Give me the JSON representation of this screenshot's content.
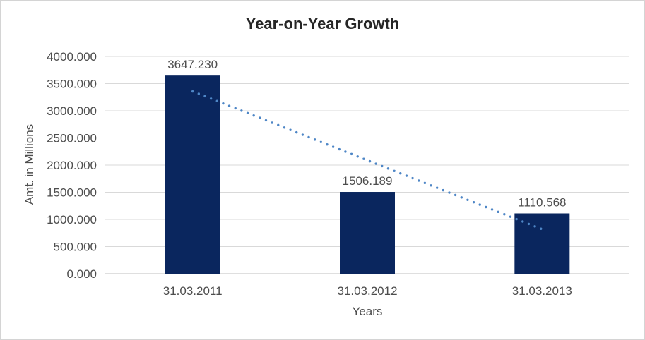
{
  "frame": {
    "background": "#ffffff",
    "border_color": "#d4d4d4"
  },
  "chart_data": {
    "type": "bar",
    "title": "Year-on-Year Growth",
    "xlabel": "Years",
    "ylabel": "Amt. in Millions",
    "categories": [
      "31.03.2011",
      "31.03.2012",
      "31.03.2013"
    ],
    "values": [
      3647.23,
      1506.189,
      1110.568
    ],
    "data_labels": [
      "3647.230",
      "1506.189",
      "1110.568"
    ],
    "ylim": [
      0,
      4000
    ],
    "ytick_step": 500,
    "ytick_decimals": 3,
    "ytick_labels": [
      "0.000",
      "500.000",
      "1000.000",
      "1500.000",
      "2000.000",
      "2500.000",
      "3000.000",
      "3500.000",
      "4000.000"
    ],
    "grid": true,
    "legend": "none",
    "colors": {
      "bar": "#0a265e",
      "trendline": "#4e86c6",
      "gridline": "#d9d9d9",
      "axis_line": "#bfbfbf",
      "tick_label": "#4d4d4d",
      "data_label": "#444444",
      "title": "#262626"
    },
    "trendline": {
      "type": "linear",
      "style": "dotted",
      "color": "#4e86c6"
    }
  }
}
